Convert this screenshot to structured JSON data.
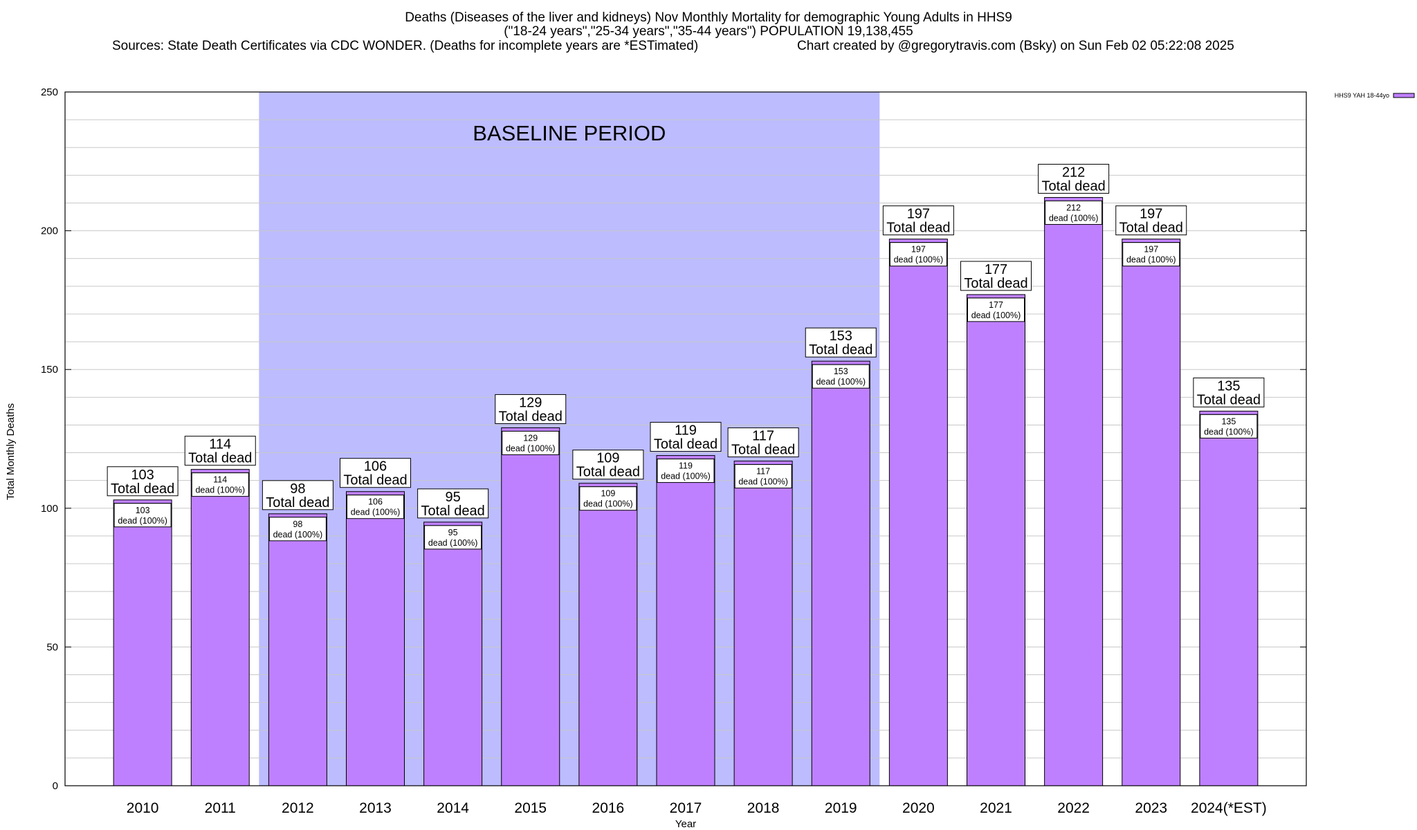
{
  "chart_data": {
    "type": "bar",
    "title_lines": [
      "Deaths (Diseases of the liver and kidneys) Nov Monthly Mortality for demographic Young Adults in HHS9",
      "(\"18-24 years\",\"25-34 years\",\"35-44 years\") POPULATION 19,138,455"
    ],
    "subtitle_left": "Sources: State Death Certificates via CDC WONDER. (Deaths for incomplete years are *ESTimated)",
    "subtitle_right": "Chart created by @gregorytravis.com (Bsky) on Sun Feb 02 05:22:08 2025",
    "xlabel": "Year",
    "ylabel": "Total Monthly Deaths",
    "ylim": [
      0,
      250
    ],
    "yticks": [
      0,
      50,
      100,
      150,
      200,
      250
    ],
    "grid": true,
    "legend": {
      "position": "top-right",
      "label": "HHS9 YAH 18-44yo"
    },
    "categories": [
      "2010",
      "2011",
      "2012",
      "2013",
      "2014",
      "2015",
      "2016",
      "2017",
      "2018",
      "2019",
      "2020",
      "2021",
      "2022",
      "2023",
      "2024(*EST)"
    ],
    "series": [
      {
        "name": "HHS9 YAH 18-44yo",
        "values": [
          103,
          114,
          98,
          106,
          95,
          129,
          109,
          119,
          117,
          153,
          197,
          177,
          212,
          197,
          135
        ]
      }
    ],
    "top_label_suffix": "Total dead",
    "inner_label_suffix": "dead (100%)",
    "baseline_period": {
      "label": "BASELINE PERIOD",
      "from": "2012",
      "to": "2019"
    },
    "colors": {
      "bar": "#bf80ff",
      "bar_edge": "#000000",
      "baseline": "#bcbcff",
      "grid": "#c8c8c8"
    }
  }
}
